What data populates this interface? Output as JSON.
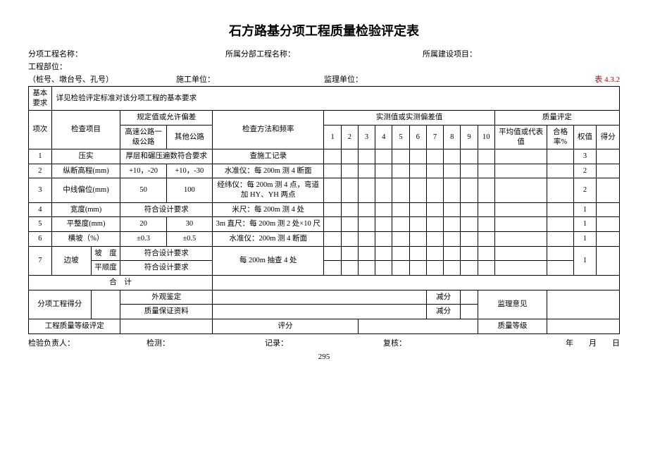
{
  "title": "石方路基分项工程质量检验评定表",
  "meta": {
    "row1": {
      "a": "分项工程名称：",
      "b": "所属分部工程名称：",
      "c": "所属建设项目："
    },
    "row2": {
      "a": "工程部位："
    },
    "row3": {
      "a": "（桩号、墩台号、孔号）",
      "b": "施工单位：",
      "c": "监理单位：",
      "d": "表 4.3.2"
    }
  },
  "headers": {
    "basicReq": "基本要求",
    "basicReqText": "详见检验评定标准对该分项工程的基本要求",
    "idx": "项次",
    "item": "检查项目",
    "tolerance": "规定值或允许偏差",
    "highway": "高速公路一级公路",
    "other": "其他公路",
    "method": "检查方法和频率",
    "measured": "实测值或实测偏差值",
    "cols": [
      "1",
      "2",
      "3",
      "4",
      "5",
      "6",
      "7",
      "8",
      "9",
      "10"
    ],
    "rating": "质量评定",
    "avg": "平均值或代表值",
    "passRate": "合格率%",
    "weight": "权值",
    "score": "得分"
  },
  "rows": [
    {
      "n": "1",
      "item": "压实",
      "hw": "厚层和碾压遍数符合要求",
      "ot": "",
      "method": "查施工记录",
      "weight": "3",
      "merged": true
    },
    {
      "n": "2",
      "item": "纵断高程(mm)",
      "hw": "+10，-20",
      "ot": "+10，-30",
      "method": "水准仪：每 200m 测 4 断面",
      "weight": "2"
    },
    {
      "n": "3",
      "item": "中线偏位(mm)",
      "hw": "50",
      "ot": "100",
      "method": "经纬仪：每 200m 测 4 点，弯道加 HY、YH 两点",
      "weight": "2"
    },
    {
      "n": "4",
      "item": "宽度(mm)",
      "hw": "符合设计要求",
      "ot": "",
      "method": "米尺：每 200m 测 4 处",
      "weight": "1",
      "merged": true
    },
    {
      "n": "5",
      "item": "平整度(mm)",
      "hw": "20",
      "ot": "30",
      "method": "3m 直尺：每 200m 测 2 处×10 尺",
      "weight": "1"
    },
    {
      "n": "6",
      "item": "横坡（%）",
      "hw": "±0.3",
      "ot": "±0.5",
      "method": "水准仪：200m 测 4 断面",
      "weight": "1"
    }
  ],
  "row7": {
    "n": "7",
    "item": "边坡",
    "sub1": "坡　度",
    "sub2": "平顺度",
    "hw1": "符合设计要求",
    "hw2": "符合设计要求",
    "method": "每 200m 抽查 4 处",
    "weight": "1"
  },
  "total": "合　计",
  "bottom": {
    "subScore": "分项工程得分",
    "appearance": "外观鉴定",
    "deduct": "减分",
    "supervisor": "监理意见",
    "quality": "质量保证资料",
    "gradeRating": "工程质量等级评定",
    "scoreLabel": "评分",
    "gradeLabel": "质量等级"
  },
  "footer": {
    "a": "检验负责人：",
    "b": "检测：",
    "c": "记录：",
    "d": "复核：",
    "e": "年　　月　　日"
  },
  "pageno": "295"
}
